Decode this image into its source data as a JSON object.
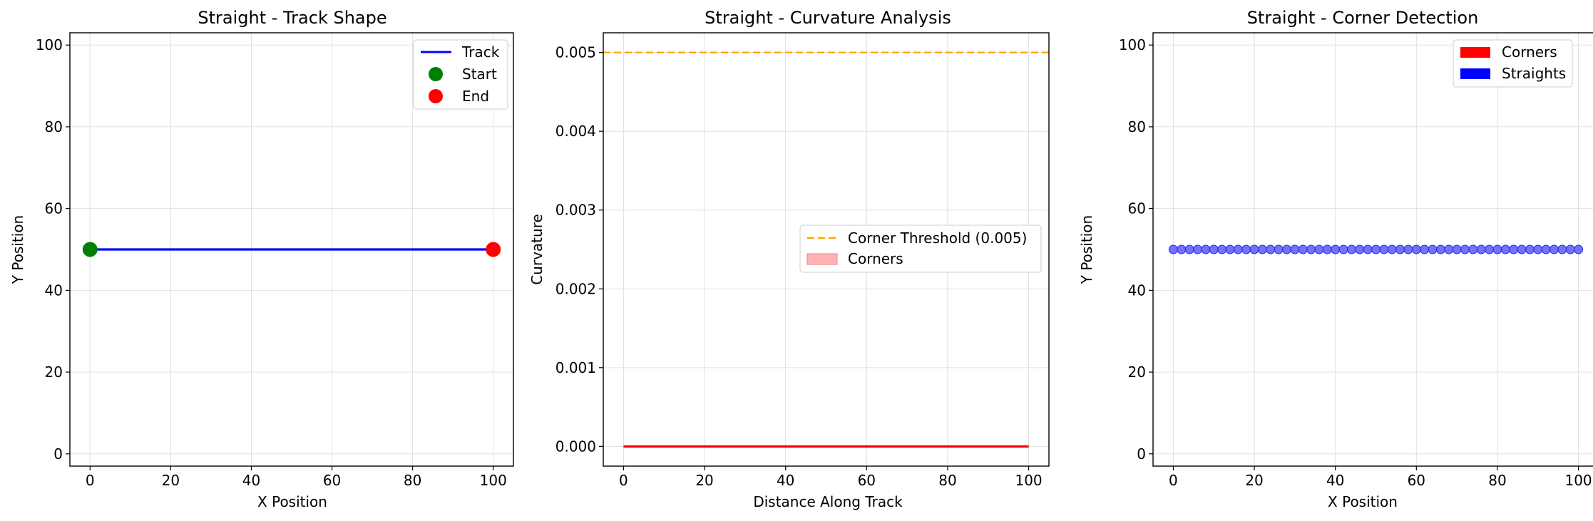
{
  "colors": {
    "track": "#0000ff",
    "start": "#008000",
    "end": "#ff0000",
    "threshold": "#ffa500",
    "curvature": "#ff0000",
    "corners_fill": "#ffb3b3",
    "corners_patch": "#ff0000",
    "straights_patch": "#0000ff",
    "straight_points": "#4d4dff",
    "grid": "#e0e0e0",
    "axes": "#000000"
  },
  "chart_data": [
    {
      "type": "line",
      "title": "Straight - Track Shape",
      "xlabel": "X Position",
      "ylabel": "Y Position",
      "xlim": [
        -5,
        105
      ],
      "ylim": [
        -3,
        103
      ],
      "xticks": [
        0,
        20,
        40,
        60,
        80,
        100
      ],
      "yticks": [
        0,
        20,
        40,
        60,
        80,
        100
      ],
      "grid": true,
      "legend_position": "top-right",
      "series": [
        {
          "name": "Track",
          "kind": "line",
          "x": [
            0,
            100
          ],
          "y": [
            50,
            50
          ]
        },
        {
          "name": "Start",
          "kind": "scatter",
          "x": [
            0
          ],
          "y": [
            50
          ]
        },
        {
          "name": "End",
          "kind": "scatter",
          "x": [
            100
          ],
          "y": [
            50
          ]
        }
      ]
    },
    {
      "type": "line",
      "title": "Straight - Curvature Analysis",
      "xlabel": "Distance Along Track",
      "ylabel": "Curvature",
      "xlim": [
        -5,
        105
      ],
      "ylim": [
        -0.00025,
        0.00525
      ],
      "xticks": [
        0,
        20,
        40,
        60,
        80,
        100
      ],
      "yticks": [
        0.0,
        0.001,
        0.002,
        0.003,
        0.004,
        0.005
      ],
      "ytick_labels": [
        "0.000",
        "0.001",
        "0.002",
        "0.003",
        "0.004",
        "0.005"
      ],
      "grid": true,
      "legend_position": "center-right",
      "series": [
        {
          "name": "",
          "kind": "line",
          "x": [
            0,
            100
          ],
          "y": [
            0,
            0
          ]
        },
        {
          "name": "Corner Threshold (0.005)",
          "kind": "hline",
          "y": 0.005
        },
        {
          "name": "Corners",
          "kind": "fill",
          "x": [],
          "y": []
        }
      ]
    },
    {
      "type": "scatter",
      "title": "Straight - Corner Detection",
      "xlabel": "X Position",
      "ylabel": "Y Position",
      "xlim": [
        -5,
        105
      ],
      "ylim": [
        -3,
        103
      ],
      "xticks": [
        0,
        20,
        40,
        60,
        80,
        100
      ],
      "yticks": [
        0,
        20,
        40,
        60,
        80,
        100
      ],
      "grid": true,
      "legend_position": "top-right",
      "series": [
        {
          "name": "Corners",
          "kind": "scatter",
          "x": [],
          "y": []
        },
        {
          "name": "Straights",
          "kind": "scatter",
          "x": [
            0,
            2,
            4,
            6,
            8,
            10,
            12,
            14,
            16,
            18,
            20,
            22,
            24,
            26,
            28,
            30,
            32,
            34,
            36,
            38,
            40,
            42,
            44,
            46,
            48,
            50,
            52,
            54,
            56,
            58,
            60,
            62,
            64,
            66,
            68,
            70,
            72,
            74,
            76,
            78,
            80,
            82,
            84,
            86,
            88,
            90,
            92,
            94,
            96,
            98,
            100
          ],
          "y": [
            50,
            50,
            50,
            50,
            50,
            50,
            50,
            50,
            50,
            50,
            50,
            50,
            50,
            50,
            50,
            50,
            50,
            50,
            50,
            50,
            50,
            50,
            50,
            50,
            50,
            50,
            50,
            50,
            50,
            50,
            50,
            50,
            50,
            50,
            50,
            50,
            50,
            50,
            50,
            50,
            50,
            50,
            50,
            50,
            50,
            50,
            50,
            50,
            50,
            50,
            50
          ]
        }
      ]
    }
  ]
}
